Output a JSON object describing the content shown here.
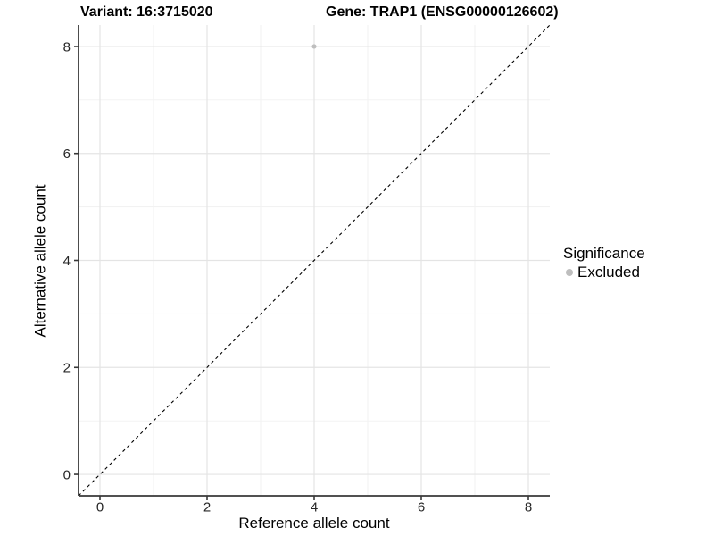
{
  "chart_data": {
    "type": "scatter",
    "titles": {
      "left": "Variant: 16:3715020",
      "right": "Gene: TRAP1 (ENSG00000126602)"
    },
    "xlabel": "Reference allele count",
    "ylabel": "Alternative allele count",
    "xlim": [
      -0.4,
      8.4
    ],
    "ylim": [
      -0.4,
      8.4
    ],
    "x_ticks": [
      0,
      2,
      4,
      6,
      8
    ],
    "y_ticks": [
      0,
      2,
      4,
      6,
      8
    ],
    "x_minor_ticks": [
      1,
      3,
      5,
      7
    ],
    "y_minor_ticks": [
      1,
      3,
      5,
      7
    ],
    "grid": true,
    "series": [
      {
        "name": "Excluded",
        "color": "#bebebe",
        "points": [
          {
            "x": 4,
            "y": 8
          }
        ]
      }
    ],
    "reference_line": {
      "slope": 1,
      "intercept": 0,
      "style": "dashed",
      "color": "#000000"
    },
    "legend": {
      "title": "Significance",
      "position": "right",
      "items": [
        {
          "label": "Excluded",
          "color": "#bebebe",
          "marker": "circle"
        }
      ]
    },
    "colors": {
      "background": "#ffffff",
      "grid_major": "#e4e4e4",
      "grid_minor": "#f1f1f1",
      "axis_line": "#383838",
      "tick_text": "#262626",
      "point": "#bebebe"
    }
  }
}
